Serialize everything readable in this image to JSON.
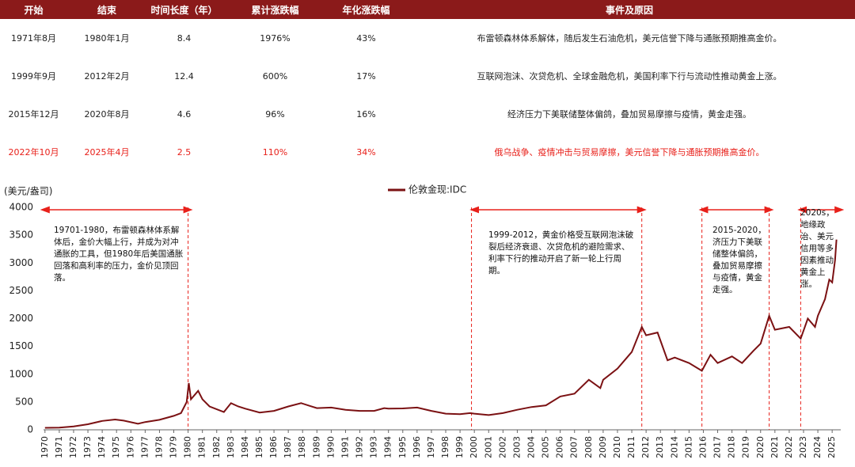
{
  "table": {
    "header": [
      "开始",
      "结束",
      "时间长度（年）",
      "累计涨跌幅",
      "年化涨跌幅",
      "事件及原因"
    ],
    "header_color": "#8b1a1a",
    "rows": [
      [
        "1971年8月",
        "1980年1月",
        "8.4",
        "1976%",
        "43%",
        "布雷顿森林体系解体，随后发生石油危机，美元信誉下降与通胀预期推高金价。"
      ],
      [
        "1999年9月",
        "2012年2月",
        "12.4",
        "600%",
        "17%",
        "互联网泡沫、次贷危机、全球金融危机，美国利率下行与流动性推动黄金上涨。"
      ],
      [
        "2015年12月",
        "2020年8月",
        "4.6",
        "96%",
        "16%",
        "经济压力下美联储整体偏鸽，叠加贸易摩擦与疫情，黄金走强。"
      ],
      [
        "2022年10月",
        "2025年4月",
        "2.5",
        "110%",
        "34%",
        "俄乌战争、疫情冲击与贸易摩擦，美元信誉下降与通胀预期推高金价。"
      ]
    ],
    "highlight_row": 3,
    "highlight_color": "#e8201a"
  },
  "chart_data": {
    "type": "line",
    "y_label": "(美元/盎司)",
    "x": [
      1970,
      1971,
      1972,
      1973,
      1974,
      1974.9,
      1975.5,
      1976.5,
      1977,
      1978,
      1979,
      1979.5,
      1979.9,
      1980.05,
      1980.2,
      1980.7,
      1981,
      1981.5,
      1982.5,
      1983,
      1983.5,
      1984,
      1985,
      1986,
      1987,
      1987.9,
      1988.5,
      1989,
      1990,
      1991,
      1992,
      1993,
      1993.7,
      1994,
      1995,
      1996,
      1997,
      1998,
      1999,
      1999.7,
      2000,
      2001,
      2002,
      2003,
      2004,
      2005,
      2006,
      2007,
      2008,
      2008.8,
      2009,
      2010,
      2011,
      2011.7,
      2012,
      2012.8,
      2013.5,
      2014,
      2015,
      2015.9,
      2016.5,
      2017,
      2018,
      2018.7,
      2019.5,
      2020,
      2020.6,
      2021,
      2022,
      2022.8,
      2023.3,
      2023.8,
      2024,
      2024.5,
      2024.8,
      2025,
      2025.2,
      2025.3
    ],
    "series": [
      {
        "name": "伦敦金现:IDC",
        "color": "#7b1113",
        "values": [
          35,
          40,
          60,
          100,
          160,
          185,
          165,
          110,
          140,
          180,
          250,
          300,
          500,
          840,
          550,
          700,
          550,
          420,
          320,
          480,
          420,
          380,
          310,
          340,
          420,
          480,
          430,
          390,
          400,
          360,
          340,
          340,
          390,
          380,
          385,
          400,
          340,
          290,
          280,
          300,
          290,
          265,
          300,
          360,
          410,
          440,
          600,
          650,
          900,
          750,
          900,
          1100,
          1400,
          1850,
          1700,
          1750,
          1250,
          1300,
          1200,
          1060,
          1350,
          1200,
          1320,
          1200,
          1420,
          1550,
          2050,
          1800,
          1850,
          1640,
          2000,
          1850,
          2050,
          2350,
          2700,
          2650,
          3050,
          3420
        ]
      }
    ],
    "xlim": [
      1969.9,
      2025.6
    ],
    "ylim": [
      0,
      4000
    ],
    "xticks": [
      1970,
      1971,
      1972,
      1973,
      1974,
      1975,
      1976,
      1977,
      1978,
      1979,
      1980,
      1981,
      1982,
      1983,
      1984,
      1985,
      1986,
      1987,
      1988,
      1989,
      1990,
      1991,
      1992,
      1993,
      1994,
      1995,
      1996,
      1997,
      1998,
      1999,
      2000,
      2001,
      2002,
      2003,
      2004,
      2005,
      2006,
      2007,
      2008,
      2009,
      2010,
      2011,
      2012,
      2013,
      2014,
      2015,
      2016,
      2017,
      2018,
      2019,
      2020,
      2021,
      2022,
      2023,
      2024,
      2025
    ],
    "yticks": [
      0,
      500,
      1000,
      1500,
      2000,
      2500,
      3000,
      3500,
      4000
    ],
    "vlines": [
      1980,
      1999.8,
      2011.7,
      2015.9,
      2020.6,
      2022.8
    ],
    "vline_color": "#e8201a",
    "periods": [
      {
        "x": [
          1970,
          1980
        ],
        "text": "19701-1980，布雷顿森林体系解体后，金价大幅上行，并成为对冲通胀的工具，但1980年后美国通胀回落和高利率的压力，金价见顶回落。"
      },
      {
        "x": [
          2000,
          2011.7
        ],
        "text": "1999-2012，黄金价格受互联网泡沫破裂后经济衰退、次贷危机的避险需求、利率下行的推动开启了新一轮上行周期。"
      },
      {
        "x": [
          2016,
          2020.6
        ],
        "text": "2015-2020，济压力下美联储整体偏鸽，叠加贸易摩擦与疫情，黄金走强。"
      },
      {
        "x": [
          2022.9,
          2025.5
        ],
        "text": "2020s，地缘政治、美元信用等多因素推动黄金上涨。"
      }
    ]
  }
}
